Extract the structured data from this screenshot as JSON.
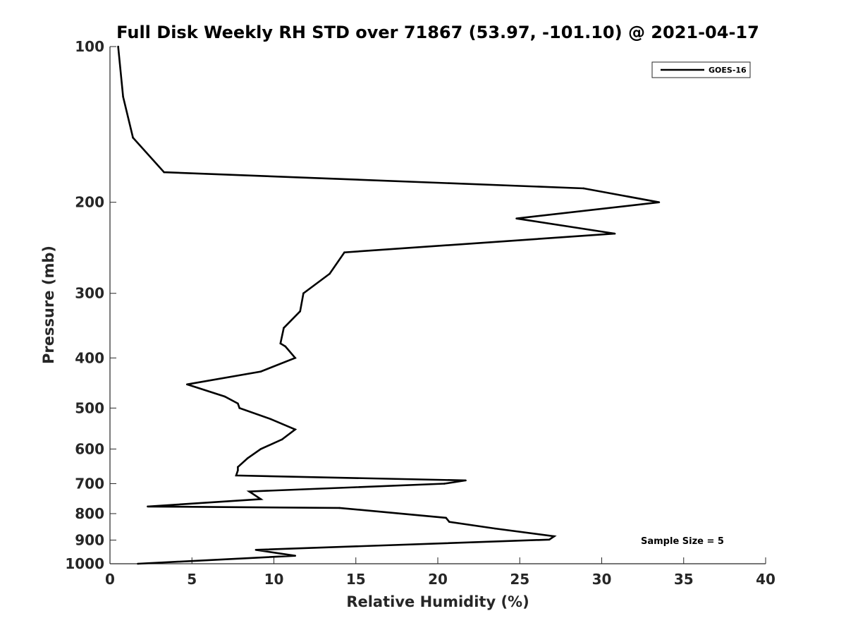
{
  "chart_data": {
    "type": "line",
    "title": "Full Disk Weekly RH STD over 71867 (53.97, -101.10) @ 2021-04-17",
    "xlabel": "Relative Humidity (%)",
    "ylabel": "Pressure (mb)",
    "xlim": [
      0,
      40
    ],
    "ylim": [
      100,
      1000
    ],
    "y_scale": "log",
    "y_reversed": true,
    "grid": false,
    "legend_position": "top-right",
    "x_ticks": [
      0,
      5,
      10,
      15,
      20,
      25,
      30,
      35,
      40
    ],
    "x_tick_labels": [
      "0",
      "5",
      "10",
      "15",
      "20",
      "25",
      "30",
      "35",
      "40"
    ],
    "y_ticks": [
      100,
      200,
      300,
      400,
      500,
      600,
      700,
      800,
      900,
      1000
    ],
    "y_tick_labels": [
      "100",
      "200",
      "300",
      "400",
      "500",
      "600",
      "700",
      "800",
      "900",
      "1000"
    ],
    "annotation": "Sample Size = 5",
    "series": [
      {
        "name": "GOES-16",
        "color": "#000000",
        "points": [
          [
            0.5,
            100
          ],
          [
            0.8,
            125
          ],
          [
            1.4,
            150
          ],
          [
            3.3,
            175
          ],
          [
            28.9,
            188
          ],
          [
            33.5,
            200
          ],
          [
            24.8,
            215
          ],
          [
            30.8,
            230
          ],
          [
            14.3,
            250
          ],
          [
            13.4,
            275
          ],
          [
            11.8,
            300
          ],
          [
            11.6,
            325
          ],
          [
            10.6,
            350
          ],
          [
            10.4,
            375
          ],
          [
            10.7,
            380
          ],
          [
            11.3,
            400
          ],
          [
            9.2,
            425
          ],
          [
            4.7,
            450
          ],
          [
            7.0,
            475
          ],
          [
            7.8,
            490
          ],
          [
            7.9,
            500
          ],
          [
            9.8,
            525
          ],
          [
            11.3,
            550
          ],
          [
            10.5,
            575
          ],
          [
            9.2,
            600
          ],
          [
            8.4,
            625
          ],
          [
            7.8,
            650
          ],
          [
            7.8,
            660
          ],
          [
            7.7,
            675
          ],
          [
            21.7,
            690
          ],
          [
            20.4,
            700
          ],
          [
            8.5,
            725
          ],
          [
            9.2,
            750
          ],
          [
            2.3,
            775
          ],
          [
            14.0,
            780
          ],
          [
            20.5,
            815
          ],
          [
            20.7,
            830
          ],
          [
            23.5,
            855
          ],
          [
            27.1,
            885
          ],
          [
            26.8,
            898
          ],
          [
            8.9,
            940
          ],
          [
            11.3,
            965
          ],
          [
            1.7,
            1000
          ]
        ]
      }
    ]
  }
}
